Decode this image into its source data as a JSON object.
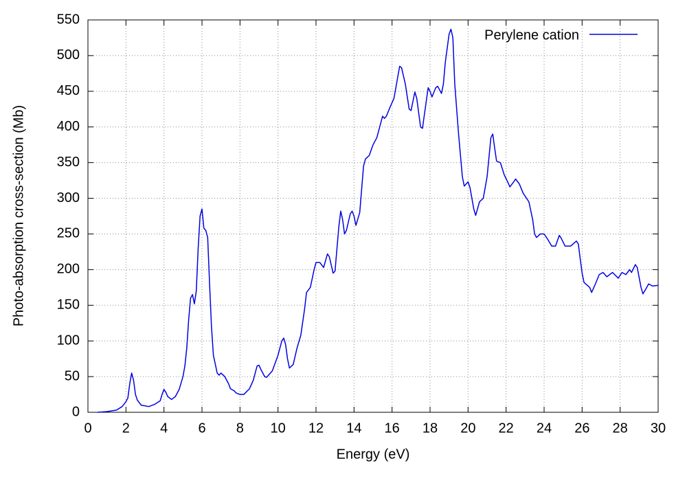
{
  "chart_data": {
    "type": "line",
    "xlabel": "Energy (eV)",
    "ylabel": "Photo-absorption cross-section (Mb)",
    "x": [
      0.5,
      1.0,
      1.5,
      1.8,
      2.0,
      2.1,
      2.2,
      2.3,
      2.4,
      2.5,
      2.6,
      2.8,
      3.0,
      3.2,
      3.5,
      3.8,
      3.9,
      4.0,
      4.1,
      4.2,
      4.4,
      4.6,
      4.8,
      5.0,
      5.1,
      5.2,
      5.3,
      5.4,
      5.5,
      5.6,
      5.7,
      5.8,
      5.9,
      6.0,
      6.1,
      6.2,
      6.3,
      6.4,
      6.5,
      6.6,
      6.8,
      6.9,
      7.0,
      7.2,
      7.4,
      7.5,
      7.7,
      7.8,
      8.0,
      8.2,
      8.5,
      8.7,
      8.9,
      9.0,
      9.1,
      9.3,
      9.4,
      9.7,
      10.0,
      10.2,
      10.3,
      10.4,
      10.5,
      10.6,
      10.8,
      11.0,
      11.2,
      11.4,
      11.5,
      11.7,
      11.9,
      12.0,
      12.2,
      12.4,
      12.6,
      12.7,
      12.9,
      13.0,
      13.2,
      13.3,
      13.4,
      13.5,
      13.6,
      13.8,
      13.9,
      14.0,
      14.1,
      14.3,
      14.5,
      14.6,
      14.8,
      15.0,
      15.2,
      15.3,
      15.5,
      15.6,
      15.7,
      15.9,
      16.1,
      16.3,
      16.4,
      16.5,
      16.7,
      16.9,
      17.0,
      17.2,
      17.3,
      17.5,
      17.6,
      17.9,
      18.0,
      18.1,
      18.3,
      18.4,
      18.6,
      18.7,
      18.8,
      19.0,
      19.1,
      19.2,
      19.3,
      19.5,
      19.7,
      19.8,
      20.0,
      20.1,
      20.3,
      20.4,
      20.6,
      20.8,
      21.0,
      21.2,
      21.3,
      21.4,
      21.5,
      21.7,
      21.9,
      22.1,
      22.2,
      22.4,
      22.5,
      22.7,
      22.9,
      23.2,
      23.4,
      23.5,
      23.6,
      23.8,
      24.0,
      24.2,
      24.4,
      24.6,
      24.8,
      24.9,
      25.1,
      25.4,
      25.7,
      25.8,
      25.9,
      26.0,
      26.1,
      26.4,
      26.5,
      26.7,
      26.9,
      27.1,
      27.3,
      27.6,
      27.9,
      28.1,
      28.3,
      28.5,
      28.6,
      28.8,
      28.9,
      29.1,
      29.2,
      29.4,
      29.5,
      29.7,
      30.0
    ],
    "series": [
      {
        "name": "Perylene cation",
        "color": "#0000e0",
        "values": [
          0,
          1,
          3,
          8,
          15,
          20,
          40,
          55,
          45,
          25,
          17,
          10,
          9,
          8,
          11,
          16,
          25,
          32,
          28,
          22,
          18,
          22,
          32,
          50,
          65,
          90,
          130,
          160,
          165,
          152,
          170,
          230,
          275,
          285,
          258,
          255,
          245,
          180,
          120,
          80,
          55,
          52,
          55,
          50,
          40,
          33,
          30,
          27,
          25,
          25,
          33,
          45,
          65,
          66,
          60,
          50,
          49,
          58,
          80,
          100,
          104,
          95,
          75,
          62,
          67,
          90,
          108,
          145,
          168,
          175,
          200,
          210,
          210,
          203,
          222,
          218,
          195,
          198,
          260,
          282,
          270,
          250,
          255,
          278,
          282,
          275,
          262,
          280,
          345,
          355,
          360,
          375,
          385,
          395,
          415,
          412,
          415,
          428,
          440,
          470,
          485,
          483,
          460,
          425,
          423,
          449,
          440,
          400,
          398,
          455,
          450,
          442,
          455,
          457,
          447,
          460,
          490,
          530,
          537,
          525,
          460,
          390,
          330,
          317,
          323,
          315,
          285,
          276,
          295,
          300,
          330,
          385,
          390,
          370,
          352,
          350,
          333,
          322,
          316,
          323,
          327,
          320,
          307,
          295,
          270,
          250,
          245,
          250,
          250,
          242,
          233,
          233,
          248,
          244,
          233,
          233,
          240,
          236,
          215,
          195,
          182,
          175,
          168,
          180,
          193,
          196,
          190,
          196,
          188,
          196,
          193,
          200,
          196,
          207,
          203,
          175,
          166,
          175,
          180,
          177,
          178
        ]
      }
    ],
    "xlim": [
      0,
      30
    ],
    "xticks": [
      0,
      2,
      4,
      6,
      8,
      10,
      12,
      14,
      16,
      18,
      20,
      22,
      24,
      26,
      28,
      30
    ],
    "ylim": [
      0,
      550
    ],
    "yticks": [
      0,
      50,
      100,
      150,
      200,
      250,
      300,
      350,
      400,
      450,
      500,
      550
    ],
    "grid": true,
    "legend": "top-right"
  }
}
